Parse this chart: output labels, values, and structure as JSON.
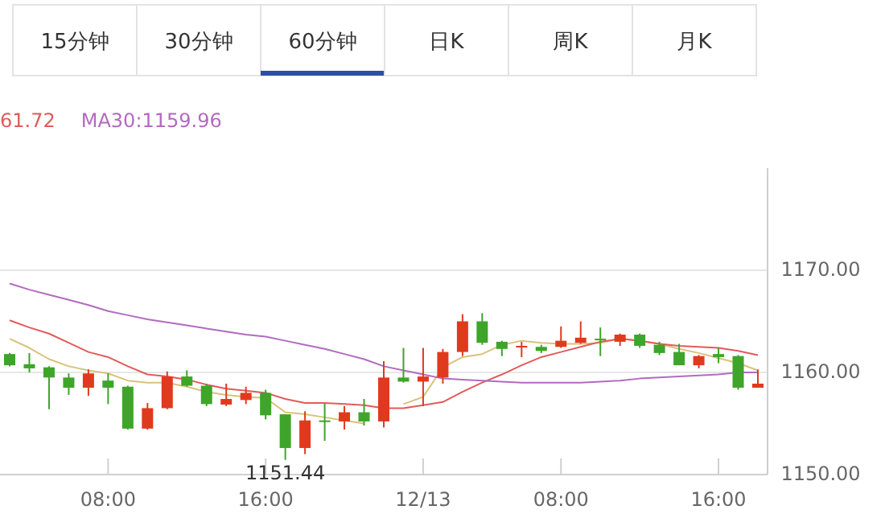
{
  "chart_data": {
    "type": "candlestick",
    "categories": [
      null,
      null,
      null,
      null,
      null,
      "08:00",
      null,
      null,
      null,
      null,
      null,
      null,
      null,
      "16:00",
      null,
      null,
      null,
      null,
      null,
      null,
      null,
      "12/13",
      null,
      null,
      null,
      null,
      null,
      null,
      "08:00",
      null,
      null,
      null,
      null,
      null,
      null,
      null,
      "16:00",
      null,
      null
    ],
    "ohlc": [
      [
        1161.8,
        1161.9,
        1160.6,
        1160.7
      ],
      [
        1160.8,
        1161.9,
        1160.0,
        1160.4
      ],
      [
        1160.5,
        1160.6,
        1156.4,
        1159.5
      ],
      [
        1159.5,
        1159.9,
        1157.8,
        1158.5
      ],
      [
        1158.5,
        1160.3,
        1157.7,
        1159.9
      ],
      [
        1159.2,
        1159.9,
        1156.9,
        1158.5
      ],
      [
        1158.6,
        1158.7,
        1154.4,
        1154.5
      ],
      [
        1154.5,
        1157.0,
        1154.4,
        1156.5
      ],
      [
        1156.5,
        1160.1,
        1156.4,
        1159.6
      ],
      [
        1159.6,
        1160.2,
        1158.6,
        1158.7
      ],
      [
        1158.7,
        1158.9,
        1156.7,
        1156.9
      ],
      [
        1156.85,
        1158.9,
        1156.7,
        1157.4
      ],
      [
        1157.3,
        1158.6,
        1156.9,
        1158.0
      ],
      [
        1158.0,
        1158.3,
        1155.4,
        1155.8
      ],
      [
        1155.9,
        1155.9,
        1151.44,
        1152.6
      ],
      [
        1152.6,
        1156.2,
        1152.0,
        1155.3
      ],
      [
        1155.3,
        1157.0,
        1153.3,
        1155.2
      ],
      [
        1155.2,
        1156.7,
        1154.4,
        1156.1
      ],
      [
        1156.1,
        1157.4,
        1154.8,
        1155.2
      ],
      [
        1155.2,
        1161.1,
        1154.6,
        1159.5
      ],
      [
        1159.5,
        1162.4,
        1159.0,
        1159.1
      ],
      [
        1159.1,
        1162.4,
        1156.7,
        1159.6
      ],
      [
        1159.5,
        1162.3,
        1158.9,
        1162.0
      ],
      [
        1162.0,
        1165.7,
        1161.6,
        1165.0
      ],
      [
        1165.0,
        1165.8,
        1162.7,
        1162.9
      ],
      [
        1163.0,
        1163.1,
        1161.6,
        1162.3
      ],
      [
        1162.5,
        1163.0,
        1161.5,
        1162.6
      ],
      [
        1162.5,
        1162.7,
        1161.9,
        1162.1
      ],
      [
        1162.5,
        1164.5,
        1162.4,
        1163.1
      ],
      [
        1162.9,
        1165.0,
        1162.8,
        1163.4
      ],
      [
        1163.3,
        1164.4,
        1161.6,
        1163.2
      ],
      [
        1163.0,
        1163.8,
        1162.6,
        1163.7
      ],
      [
        1163.7,
        1163.8,
        1162.4,
        1162.6
      ],
      [
        1162.7,
        1163.0,
        1161.7,
        1161.9
      ],
      [
        1162.0,
        1162.8,
        1160.7,
        1160.7
      ],
      [
        1160.7,
        1161.7,
        1160.4,
        1161.6
      ],
      [
        1161.8,
        1162.4,
        1160.9,
        1161.5
      ],
      [
        1161.6,
        1161.7,
        1158.3,
        1158.5
      ],
      [
        1158.5,
        1160.3,
        1158.5,
        1158.9
      ]
    ],
    "colors": [
      "#3ea52a",
      "#3ea52a",
      "#3ea52a",
      "#3ea52a",
      "#e03a1e",
      "#3ea52a",
      "#3ea52a",
      "#e03a1e",
      "#e03a1e",
      "#3ea52a",
      "#3ea52a",
      "#e03a1e",
      "#e03a1e",
      "#3ea52a",
      "#3ea52a",
      "#e03a1e",
      "#3ea52a",
      "#e03a1e",
      "#3ea52a",
      "#e03a1e",
      "#3ea52a",
      "#e03a1e",
      "#e03a1e",
      "#e03a1e",
      "#3ea52a",
      "#3ea52a",
      "#e03a1e",
      "#3ea52a",
      "#e03a1e",
      "#e03a1e",
      "#3ea52a",
      "#e03a1e",
      "#3ea52a",
      "#3ea52a",
      "#3ea52a",
      "#e03a1e",
      "#3ea52a",
      "#3ea52a",
      "#e03a1e"
    ],
    "series": [
      {
        "type": "line",
        "color": "#d9c27a",
        "values": [
          1163.3,
          1162.4,
          1161.3,
          1160.6,
          1160.2,
          1159.9,
          1159.2,
          1159.0,
          1159.0,
          1158.6,
          1158.1,
          1157.8,
          1157.6,
          1157.5,
          1156.1,
          1155.9,
          1155.6,
          1155.3,
          1155.0,
          null,
          1156.9,
          1157.6,
          1160.5,
          1161.5,
          1161.8,
          1162.7,
          1163.1,
          1162.9,
          1162.8,
          1162.8,
          1162.9,
          1163.3,
          1163.1,
          1162.8,
          1162.3,
          1161.9,
          1161.4,
          1160.9,
          1160.2
        ]
      },
      {
        "type": "line",
        "name": "61.72",
        "color": "#e35a5a",
        "values": [
          1165.1,
          1164.4,
          1163.8,
          1162.9,
          1162.0,
          1161.5,
          1160.6,
          1159.8,
          1159.6,
          1159.3,
          1158.8,
          1158.4,
          1158.2,
          1158.0,
          1157.4,
          1157.0,
          1157.0,
          1156.9,
          1156.8,
          1156.5,
          1156.5,
          1156.8,
          1157.1,
          1158.1,
          1159.0,
          1159.8,
          1160.7,
          1161.5,
          1162.0,
          1162.5,
          1163.0,
          1163.3,
          1163.1,
          1162.8,
          1162.6,
          1162.5,
          1162.4,
          1162.1,
          1161.7
        ]
      },
      {
        "type": "line",
        "name": "MA30:1159.96",
        "color": "#b36ac0",
        "values": [
          1168.7,
          1168.1,
          1167.6,
          1167.1,
          1166.6,
          1166.0,
          1165.6,
          1165.2,
          1164.9,
          1164.6,
          1164.3,
          1164.0,
          1163.7,
          1163.5,
          1163.1,
          1162.7,
          1162.3,
          1161.8,
          1161.3,
          1160.6,
          1160.2,
          1159.8,
          1159.4,
          1159.3,
          1159.2,
          1159.1,
          1159.0,
          1159.0,
          1159.0,
          1159.0,
          1159.1,
          1159.2,
          1159.4,
          1159.5,
          1159.6,
          1159.7,
          1159.8,
          1160.0,
          1160.0
        ]
      }
    ],
    "ylim": [
      1150,
      1180
    ],
    "yticks": [
      {
        "value": 1150,
        "label": "1150.00"
      },
      {
        "value": 1160,
        "label": "1160.00"
      },
      {
        "value": 1170,
        "label": "1170.00"
      }
    ],
    "grid": "y",
    "legend": "top left",
    "annotations": [
      "15分钟",
      "30分钟",
      "60分钟",
      "日K",
      "周K",
      "月K",
      {
        "text": "1151.44",
        "y": 1151.44
      }
    ]
  }
}
